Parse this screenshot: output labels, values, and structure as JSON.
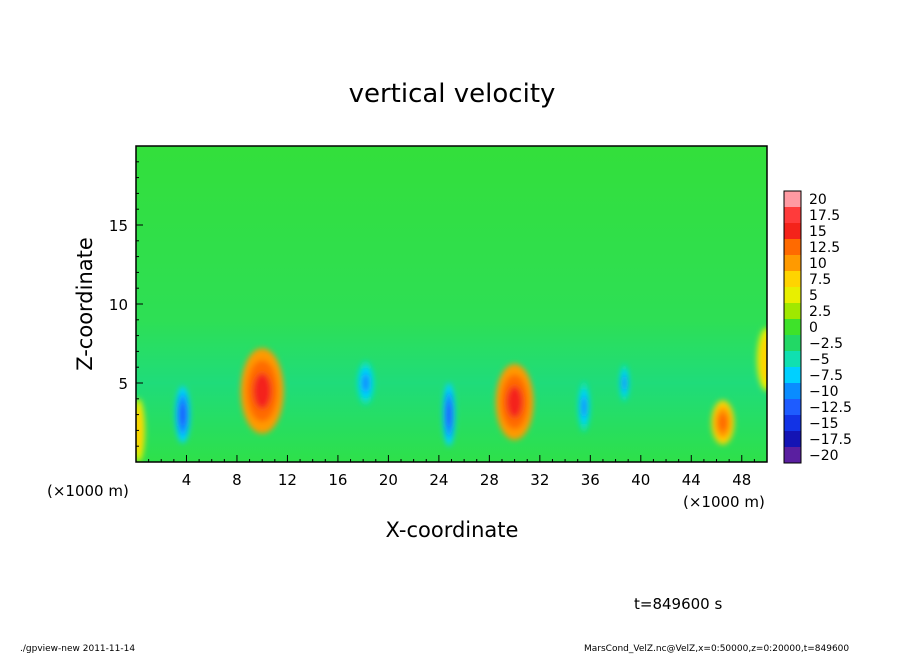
{
  "footer": {
    "left": "./gpview-new  2011-11-14",
    "right": "MarsCond_VelZ.nc@VelZ,x=0:50000,z=0:20000,t=849600"
  },
  "time_label": "t=849600 s",
  "chart_data": {
    "type": "heatmap",
    "title": "vertical velocity",
    "xlabel": "X-coordinate",
    "ylabel": "Z-coordinate",
    "x_unit_label": "(×1000 m)",
    "x_unit_label_right": "(×1000 m)",
    "xlim": [
      0,
      50
    ],
    "ylim": [
      0,
      20
    ],
    "x_ticks": [
      4,
      8,
      12,
      16,
      20,
      24,
      28,
      32,
      36,
      40,
      44,
      48
    ],
    "y_ticks": [
      5,
      10,
      15
    ],
    "colorbar": {
      "levels": [
        "20",
        "17.5",
        "15",
        "12.5",
        "10",
        "7.5",
        "5",
        "2.5",
        "0",
        "−2.5",
        "−5",
        "−7.5",
        "−10",
        "−12.5",
        "−15",
        "−17.5",
        "−20"
      ],
      "colors": [
        "#ff9aa2",
        "#ff3b3b",
        "#f4231a",
        "#ff6a00",
        "#ff9a00",
        "#ffd400",
        "#e8ef00",
        "#a0e800",
        "#3ee22a",
        "#22d865",
        "#10e0b0",
        "#00d0ff",
        "#0a8cff",
        "#1e5cff",
        "#1233e6",
        "#1414b4",
        "#5a1fa0"
      ]
    },
    "background_value": 0,
    "features": [
      {
        "x": 10,
        "z": 4.5,
        "value": 12,
        "rx": 1.7,
        "rz": 2.7
      },
      {
        "x": 30,
        "z": 3.8,
        "value": 12,
        "rx": 1.5,
        "rz": 2.4
      },
      {
        "x": 46.5,
        "z": 2.5,
        "value": 9,
        "rx": 0.9,
        "rz": 1.4
      },
      {
        "x": 3.7,
        "z": 3.0,
        "value": -10,
        "rx": 0.6,
        "rz": 1.8
      },
      {
        "x": 18.2,
        "z": 5.0,
        "value": -9,
        "rx": 0.7,
        "rz": 1.4
      },
      {
        "x": 24.8,
        "z": 3.0,
        "value": -11,
        "rx": 0.5,
        "rz": 2.0
      },
      {
        "x": 35.5,
        "z": 3.5,
        "value": -9,
        "rx": 0.5,
        "rz": 1.6
      },
      {
        "x": 38.7,
        "z": 5.0,
        "value": -8,
        "rx": 0.4,
        "rz": 1.2
      },
      {
        "x": 0.2,
        "z": 2.0,
        "value": 6,
        "rx": 0.5,
        "rz": 2.0
      },
      {
        "x": 50,
        "z": 6.5,
        "value": 5,
        "rx": 0.8,
        "rz": 2.0
      }
    ]
  }
}
